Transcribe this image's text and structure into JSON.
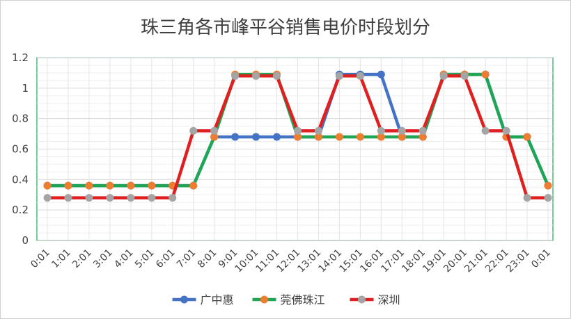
{
  "chart_data": {
    "type": "line",
    "title": "珠三角各市峰平谷销售电价时段划分",
    "xlabel": "",
    "ylabel": "",
    "ylim": [
      0,
      1.2
    ],
    "yticks": [
      "0",
      "0.2",
      "0.4",
      "0.6",
      "0.8",
      "1",
      "1.2"
    ],
    "categories": [
      "0:01",
      "1:01",
      "2:01",
      "3:01",
      "4:01",
      "5:01",
      "6:01",
      "7:01",
      "8:01",
      "9:01",
      "10:01",
      "11:01",
      "12:01",
      "13:01",
      "14:01",
      "15:01",
      "16:01",
      "17:01",
      "18:01",
      "19:01",
      "20:01",
      "21:01",
      "22:01",
      "23:01",
      "0:01"
    ],
    "grid": true,
    "legend_position": "bottom",
    "series": [
      {
        "name": "广中惠",
        "color": "#4472C4",
        "marker_color": "#4472C4",
        "values": [
          0.36,
          0.36,
          0.36,
          0.36,
          0.36,
          0.36,
          0.36,
          0.36,
          0.68,
          0.68,
          0.68,
          0.68,
          0.68,
          0.68,
          1.09,
          1.09,
          1.09,
          0.68,
          0.68,
          1.09,
          1.09,
          1.09,
          0.68,
          0.68,
          0.36
        ]
      },
      {
        "name": "莞佛珠江",
        "color": "#1FA655",
        "marker_color": "#ED7D31",
        "values": [
          0.36,
          0.36,
          0.36,
          0.36,
          0.36,
          0.36,
          0.36,
          0.36,
          0.68,
          1.09,
          1.09,
          1.09,
          0.68,
          0.68,
          0.68,
          0.68,
          0.68,
          0.68,
          0.68,
          1.09,
          1.09,
          1.09,
          0.68,
          0.68,
          0.36
        ]
      },
      {
        "name": "深圳",
        "color": "#E02020",
        "marker_color": "#A5A5A5",
        "values": [
          0.28,
          0.28,
          0.28,
          0.28,
          0.28,
          0.28,
          0.28,
          0.72,
          0.72,
          1.08,
          1.08,
          1.08,
          0.72,
          0.72,
          1.08,
          1.08,
          0.72,
          0.72,
          0.72,
          1.08,
          1.08,
          0.72,
          0.72,
          0.28,
          0.28
        ]
      }
    ]
  }
}
